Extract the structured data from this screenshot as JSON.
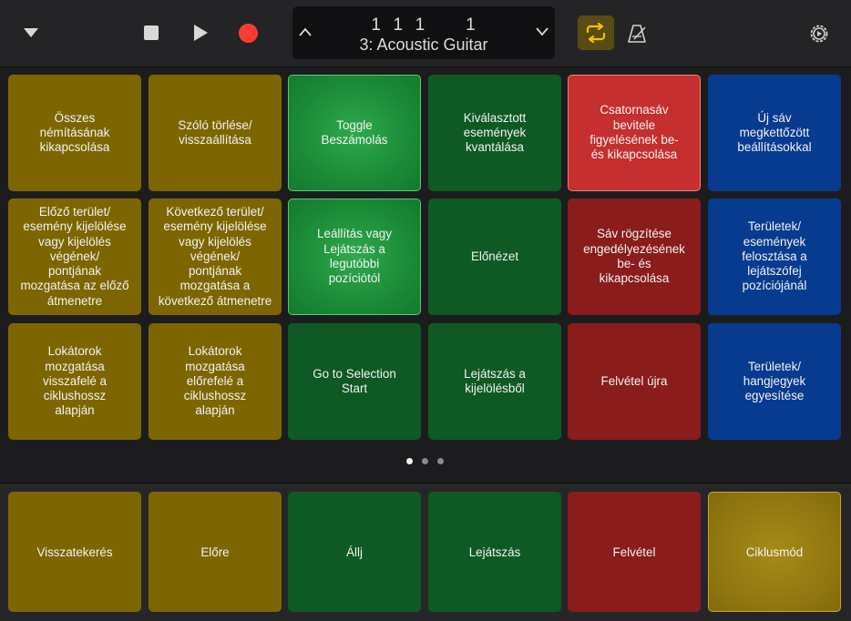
{
  "toolbar": {
    "position": "1  1  1       1",
    "track_name": "3: Acoustic Guitar"
  },
  "colors": {
    "yellow": "#7d6600",
    "green": "#0f5a24",
    "red": "#8a1c1c",
    "blue": "#073b8f",
    "record": "#ff3b30",
    "cycle_active": "#f2c200"
  },
  "pages": {
    "count": 3,
    "current": 1
  },
  "grid": {
    "rows": [
      {
        "cells": [
          {
            "label": "Összes\nnémításának\nkikapcsolása"
          },
          {
            "label": "Szóló törlése/\nvisszaállítása"
          },
          {
            "label": "Toggle\nBeszámolás"
          },
          {
            "label": "Kiválasztott\nesemények\nkvantálása"
          },
          {
            "label": "Csatornasáv\nbevitele\nfigyelésének be-\nés kikapcsolása"
          },
          {
            "label": "Új sáv\nmegkettőzött\nbeállításokkal"
          }
        ]
      },
      {
        "cells": [
          {
            "label": "Előző terület/\nesemény kijelölése\nvagy kijelölés\nvégének/\npontjának\nmozgatása az előző\nátmenetre"
          },
          {
            "label": "Következő terület/\nesemény kijelölése\nvagy kijelölés\nvégének/\npontjának\nmozgatása a\nkövetkező átmenetre"
          },
          {
            "label": "Leállítás vagy\nLejátszás a\nlegutóbbi\npozíciótól"
          },
          {
            "label": "Előnézet"
          },
          {
            "label": "Sáv rögzítése\nengedélyezésének\nbe- és\nkikapcsolása"
          },
          {
            "label": "Területek/\nesemények\nfelosztása a\nlejátszófej\npozíciójánál"
          }
        ]
      },
      {
        "cells": [
          {
            "label": "Lokátorok\nmozgatása\nvisszafelé a\nciklushossz\nalapján"
          },
          {
            "label": "Lokátorok\nmozgatása\nelőrefelé a\nciklushossz\nalapján"
          },
          {
            "label": "Go to Selection\nStart"
          },
          {
            "label": "Lejátszás a\nkijelölésből"
          },
          {
            "label": "Felvétel újra"
          },
          {
            "label": "Területek/\nhangjegyek\negyesítése"
          }
        ]
      }
    ]
  },
  "bottom": [
    {
      "label": "Visszatekerés"
    },
    {
      "label": "Előre"
    },
    {
      "label": "Állj"
    },
    {
      "label": "Lejátszás"
    },
    {
      "label": "Felvétel"
    },
    {
      "label": "Ciklusmód"
    }
  ]
}
